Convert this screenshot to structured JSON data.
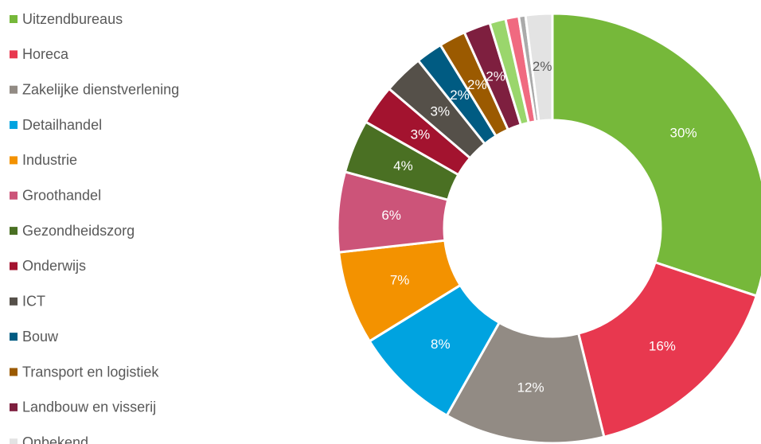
{
  "chart_data": {
    "type": "donut",
    "categories": [
      "Uitzendbureaus",
      "Horeca",
      "Zakelijke dienstverlening",
      "Detailhandel",
      "Industrie",
      "Groothandel",
      "Gezondheidszorg",
      "Onderwijs",
      "ICT",
      "Bouw",
      "Transport en logistiek",
      "Landbouw en visserij",
      null,
      null,
      null,
      "Onbekend"
    ],
    "values": [
      30,
      16,
      12,
      8,
      7,
      6,
      4,
      3,
      3,
      2,
      2,
      2,
      1.2,
      1,
      0.5,
      2
    ],
    "value_labels": [
      "30%",
      "16%",
      "12%",
      "8%",
      "7%",
      "6%",
      "4%",
      "3%",
      "3%",
      "2%",
      "2%",
      "2%",
      null,
      null,
      null,
      "2%"
    ],
    "colors": [
      "#76b83a",
      "#e8384f",
      "#928b84",
      "#00a3e0",
      "#f39200",
      "#cc5479",
      "#4a7023",
      "#a3132f",
      "#555049",
      "#005b82",
      "#9b5a00",
      "#7e1f3f",
      "#9ad66c",
      "#f06a80",
      "#aaaaaa",
      "#e3e3e3"
    ],
    "legend": "left"
  }
}
